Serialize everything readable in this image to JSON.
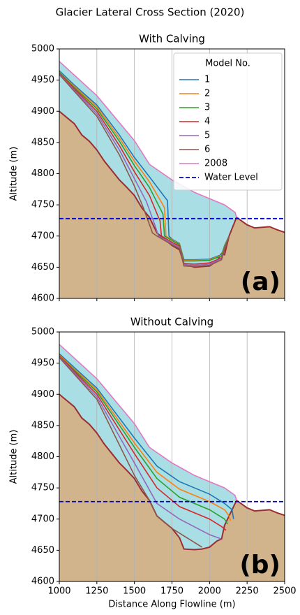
{
  "title": "Glacier Lateral Cross Section (2020)",
  "chart_data": [
    {
      "type": "line",
      "title": "With Calving",
      "ylabel": "Altitude (m)",
      "annotation": "(a)",
      "xlim": [
        1000,
        2500
      ],
      "ylim": [
        4600,
        5000
      ],
      "xticks": [
        1000,
        1250,
        1500,
        1750,
        2000,
        2250,
        2500
      ],
      "show_xtick_labels": false,
      "yticks": [
        4600,
        4650,
        4700,
        4750,
        4800,
        4850,
        4900,
        4950,
        5000
      ],
      "grid": "x",
      "legend": "upper right",
      "legend_title": "Model No.",
      "bed": {
        "color": "#9b2d30",
        "fill": "#d2b48c",
        "x": [
          1000,
          1100,
          1150,
          1200,
          1250,
          1300,
          1400,
          1450,
          1500,
          1550,
          1600,
          1650,
          1700,
          1750,
          1800,
          1830,
          1900,
          2000,
          2050,
          2080,
          2100,
          2130,
          2180,
          2250,
          2300,
          2400,
          2450,
          2500
        ],
        "values": [
          4900,
          4880,
          4862,
          4852,
          4838,
          4820,
          4790,
          4778,
          4765,
          4745,
          4730,
          4705,
          4695,
          4685,
          4678,
          4655,
          4650,
          4652,
          4660,
          4672,
          4670,
          4700,
          4730,
          4718,
          4713,
          4715,
          4710,
          4706
        ]
      },
      "series": [
        {
          "name": "1",
          "color": "#1f77b4",
          "x": [
            1000,
            1100,
            1250,
            1400,
            1500,
            1600,
            1700,
            1720,
            1730,
            1750,
            1800,
            1830,
            1900,
            2000,
            2080,
            2100,
            2130
          ],
          "values": [
            4965,
            4942,
            4910,
            4862,
            4826,
            4795,
            4763,
            4757,
            4700,
            4695,
            4688,
            4662,
            4662,
            4663,
            4670,
            4685,
            4700
          ]
        },
        {
          "name": "2",
          "color": "#ff7f0e",
          "x": [
            1000,
            1100,
            1250,
            1400,
            1500,
            1600,
            1690,
            1700,
            1710,
            1750,
            1800,
            1830,
            1900,
            2000,
            2080,
            2100,
            2130
          ],
          "values": [
            4963,
            4940,
            4907,
            4857,
            4820,
            4787,
            4750,
            4745,
            4700,
            4694,
            4687,
            4661,
            4661,
            4662,
            4669,
            4684,
            4700
          ]
        },
        {
          "name": "3",
          "color": "#2ca02c",
          "x": [
            1000,
            1100,
            1250,
            1400,
            1500,
            1600,
            1680,
            1690,
            1700,
            1750,
            1800,
            1830,
            1900,
            2000,
            2080,
            2100,
            2130
          ],
          "values": [
            4962,
            4938,
            4904,
            4852,
            4813,
            4778,
            4740,
            4735,
            4700,
            4693,
            4686,
            4660,
            4660,
            4661,
            4668,
            4683,
            4700
          ]
        },
        {
          "name": "4",
          "color": "#d62728",
          "x": [
            1000,
            1100,
            1250,
            1400,
            1500,
            1600,
            1660,
            1670,
            1680,
            1750,
            1800,
            1830,
            1900,
            2000,
            2080,
            2100,
            2130
          ],
          "values": [
            4961,
            4936,
            4900,
            4845,
            4803,
            4765,
            4730,
            4725,
            4700,
            4690,
            4684,
            4656,
            4655,
            4657,
            4665,
            4680,
            4700
          ]
        },
        {
          "name": "5",
          "color": "#9467bd",
          "x": [
            1000,
            1100,
            1250,
            1400,
            1500,
            1580,
            1630,
            1640,
            1660,
            1750,
            1800,
            1830,
            1900,
            2000,
            2080,
            2100,
            2130
          ],
          "values": [
            4960,
            4934,
            4896,
            4838,
            4792,
            4755,
            4722,
            4715,
            4700,
            4688,
            4682,
            4654,
            4653,
            4655,
            4664,
            4679,
            4700
          ]
        },
        {
          "name": "6",
          "color": "#8c564b",
          "x": [
            1000,
            1100,
            1250,
            1400,
            1500,
            1560,
            1610,
            1620,
            1650,
            1750,
            1800,
            1830,
            1900,
            2000,
            2080,
            2100,
            2130
          ],
          "values": [
            4959,
            4932,
            4892,
            4830,
            4780,
            4745,
            4712,
            4705,
            4700,
            4686,
            4680,
            4652,
            4651,
            4653,
            4662,
            4678,
            4700
          ]
        },
        {
          "name": "2008",
          "color": "#e377c2",
          "fill": "#a9dfe4",
          "x": [
            1000,
            1250,
            1500,
            1600,
            1750,
            1900,
            2000,
            2100,
            2170,
            2180
          ],
          "values": [
            4980,
            4925,
            4853,
            4815,
            4790,
            4770,
            4760,
            4750,
            4738,
            4730
          ]
        }
      ],
      "water_level": {
        "name": "Water Level",
        "value": 4728,
        "color": "#0000cc"
      }
    },
    {
      "type": "line",
      "title": "Without Calving",
      "xlabel": "Distance Along Flowline (m)",
      "ylabel": "Altitude (m)",
      "annotation": "(b)",
      "xlim": [
        1000,
        2500
      ],
      "ylim": [
        4600,
        5000
      ],
      "xticks": [
        1000,
        1250,
        1500,
        1750,
        2000,
        2250,
        2500
      ],
      "show_xtick_labels": true,
      "yticks": [
        4600,
        4650,
        4700,
        4750,
        4800,
        4850,
        4900,
        4950,
        5000
      ],
      "grid": "x",
      "bed": {
        "color": "#9b2d30",
        "fill": "#d2b48c",
        "x": [
          1000,
          1100,
          1150,
          1200,
          1250,
          1300,
          1400,
          1450,
          1500,
          1550,
          1600,
          1650,
          1700,
          1750,
          1800,
          1830,
          1900,
          1950,
          2000,
          2050,
          2080,
          2100,
          2180,
          2250,
          2300,
          2400,
          2450,
          2500
        ],
        "values": [
          4900,
          4880,
          4862,
          4852,
          4838,
          4820,
          4790,
          4778,
          4765,
          4745,
          4730,
          4705,
          4695,
          4685,
          4670,
          4652,
          4651,
          4652,
          4655,
          4665,
          4668,
          4690,
          4730,
          4718,
          4713,
          4715,
          4710,
          4706
        ]
      },
      "series": [
        {
          "color": "#1f77b4",
          "x": [
            1000,
            1250,
            1500,
            1650,
            1800,
            2000,
            2100,
            2150,
            2160
          ],
          "values": [
            4965,
            4910,
            4830,
            4785,
            4760,
            4740,
            4725,
            4715,
            4700
          ]
        },
        {
          "color": "#ff7f0e",
          "x": [
            1000,
            1250,
            1500,
            1650,
            1800,
            2000,
            2100,
            2130,
            2140
          ],
          "values": [
            4963,
            4907,
            4822,
            4775,
            4748,
            4728,
            4715,
            4705,
            4697
          ]
        },
        {
          "color": "#2ca02c",
          "x": [
            1000,
            1250,
            1500,
            1650,
            1800,
            2000,
            2100,
            2120
          ],
          "values": [
            4962,
            4904,
            4815,
            4765,
            4735,
            4715,
            4700,
            4692
          ]
        },
        {
          "color": "#d62728",
          "x": [
            1000,
            1250,
            1500,
            1650,
            1800,
            2000,
            2080,
            2110
          ],
          "values": [
            4961,
            4900,
            4805,
            4750,
            4720,
            4700,
            4688,
            4682
          ]
        },
        {
          "color": "#9467bd",
          "x": [
            1000,
            1250,
            1500,
            1650,
            1800,
            2000,
            2080
          ],
          "values": [
            4960,
            4896,
            4790,
            4725,
            4700,
            4675,
            4668
          ]
        },
        {
          "color": "#8c564b",
          "x": [
            1000,
            1250,
            1500,
            1600,
            1650,
            1750,
            1850,
            1950
          ],
          "values": [
            4959,
            4892,
            4770,
            4730,
            4705,
            4685,
            4670,
            4655
          ]
        },
        {
          "color": "#e377c2",
          "fill": "#a9dfe4",
          "x": [
            1000,
            1250,
            1500,
            1600,
            1750,
            1900,
            2000,
            2100,
            2170,
            2180
          ],
          "values": [
            4980,
            4925,
            4853,
            4815,
            4790,
            4770,
            4760,
            4750,
            4738,
            4730
          ]
        }
      ],
      "water_level": {
        "value": 4728,
        "color": "#0000cc"
      }
    }
  ]
}
